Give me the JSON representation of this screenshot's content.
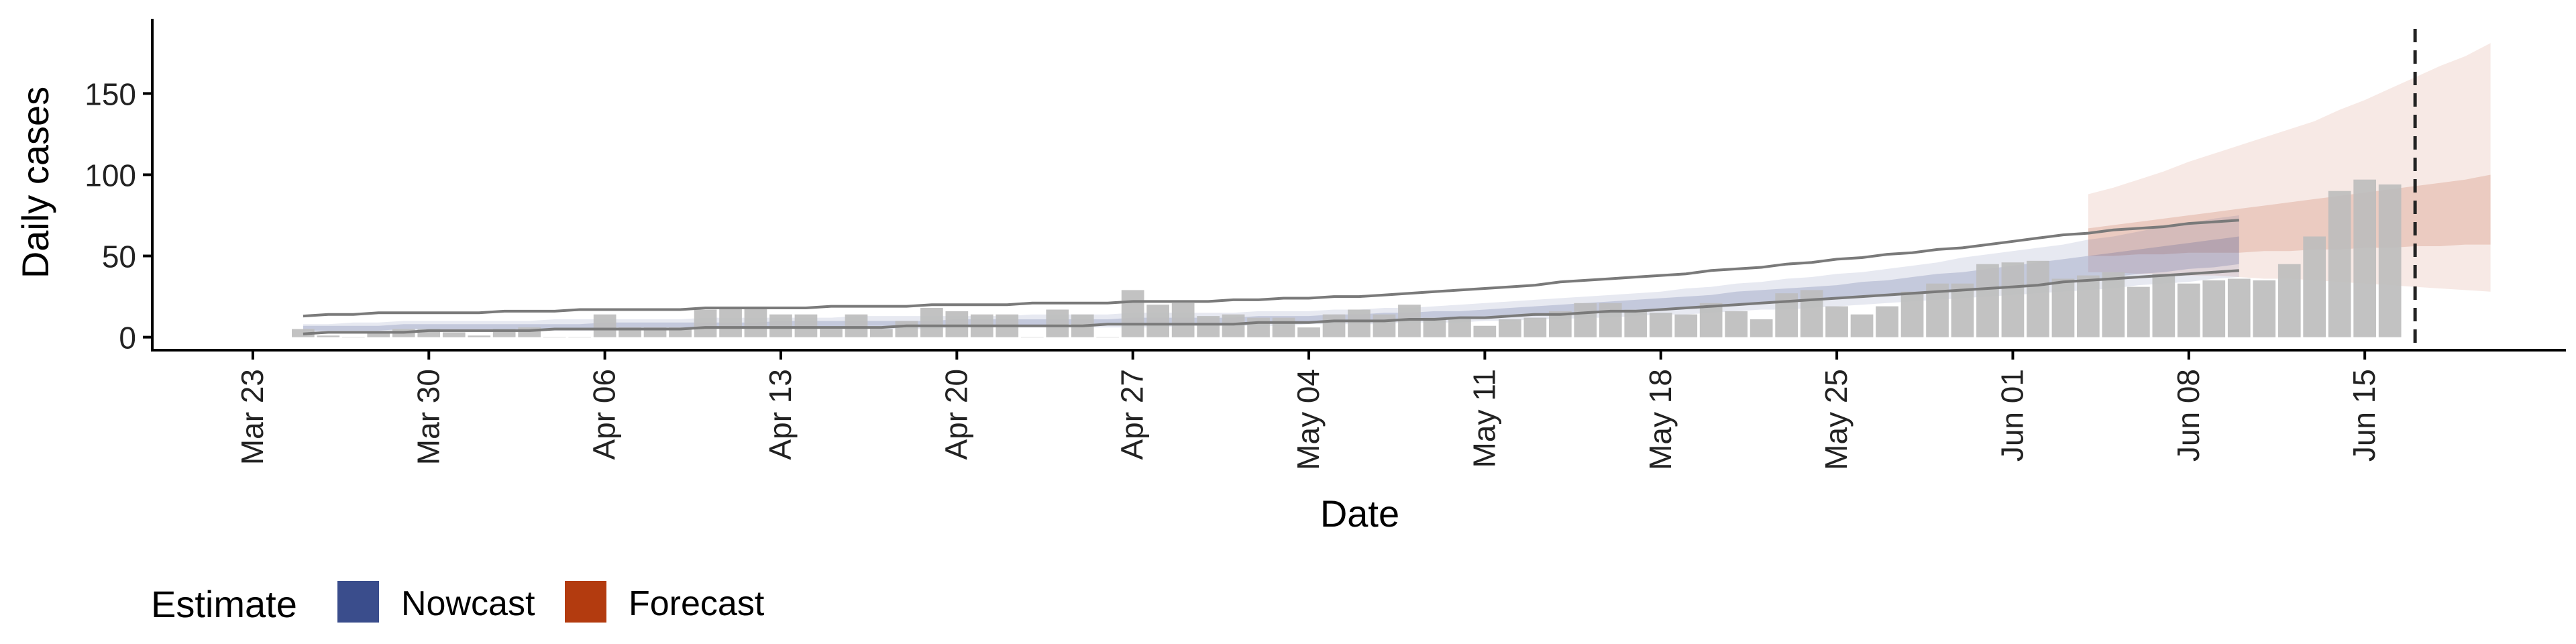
{
  "chart_data": {
    "type": "bar",
    "x_type": "date",
    "ylabel": "Daily cases",
    "xlabel": "Date",
    "ylim": [
      -8,
      196
    ],
    "xlim": [
      "2020-03-19",
      "2020-06-23"
    ],
    "y_ticks": [
      0,
      50,
      100,
      150
    ],
    "y_tick_labels": [
      "0",
      "50",
      "100",
      "150"
    ],
    "x_ticks": [
      "2020-03-23",
      "2020-03-30",
      "2020-04-06",
      "2020-04-13",
      "2020-04-20",
      "2020-04-27",
      "2020-05-04",
      "2020-05-11",
      "2020-05-18",
      "2020-05-25",
      "2020-06-01",
      "2020-06-08",
      "2020-06-15"
    ],
    "x_tick_labels": [
      "Mar 23",
      "Mar 30",
      "Apr 06",
      "Apr 13",
      "Apr 20",
      "Apr 27",
      "May 04",
      "May 11",
      "May 18",
      "May 25",
      "Jun 01",
      "Jun 08",
      "Jun 15"
    ],
    "grid": false,
    "cutoff_date": "2020-06-17",
    "legend": {
      "position": "bottom-left",
      "title": "Estimate",
      "items": [
        {
          "label": "Nowcast",
          "color": "#3a4d8c"
        },
        {
          "label": "Forecast",
          "color": "#b33b0f"
        }
      ]
    },
    "colors": {
      "bars": "#bdbdbd",
      "nowcast": "#3a4d8c",
      "forecast": "#b33b0f",
      "outer_lines": "#7a7a7a",
      "cutoff_line": "#222222"
    },
    "observed_cases": {
      "start_date": "2020-03-25",
      "values": [
        5,
        1,
        0,
        3,
        5,
        5,
        3,
        1,
        5,
        6,
        0,
        0,
        14,
        6,
        6,
        6,
        17,
        18,
        18,
        14,
        14,
        5,
        14,
        5,
        10,
        18,
        16,
        14,
        14,
        0,
        17,
        14,
        0,
        29,
        20,
        21,
        13,
        14,
        12,
        12,
        6,
        14,
        17,
        14,
        20,
        12,
        11,
        7,
        11,
        12,
        16,
        21,
        21,
        17,
        15,
        14,
        21,
        16,
        11,
        27,
        29,
        19,
        14,
        19,
        28,
        33,
        33,
        45,
        46,
        47,
        36,
        38,
        40,
        31,
        39,
        33,
        35,
        36,
        35,
        45,
        62,
        90,
        97,
        94
      ]
    },
    "nowcast_band": {
      "start_date": "2020-03-25",
      "outer_upper": [
        8,
        8,
        9,
        9,
        10,
        10,
        10,
        10,
        10,
        10,
        11,
        11,
        11,
        11,
        11,
        11,
        12,
        12,
        12,
        12,
        12,
        12,
        13,
        13,
        13,
        13,
        13,
        13,
        13,
        14,
        14,
        14,
        14,
        15,
        15,
        15,
        15,
        15,
        16,
        16,
        16,
        17,
        17,
        18,
        18,
        19,
        20,
        21,
        22,
        23,
        24,
        25,
        26,
        27,
        28,
        30,
        31,
        33,
        34,
        36,
        37,
        39,
        40,
        42,
        44,
        46,
        49,
        51,
        53,
        55,
        57,
        60,
        62,
        65,
        68,
        70,
        73,
        75
      ],
      "outer_lower": [
        3,
        3,
        3,
        3,
        3,
        4,
        4,
        4,
        4,
        4,
        4,
        4,
        4,
        4,
        5,
        5,
        5,
        5,
        5,
        5,
        5,
        5,
        5,
        5,
        5,
        5,
        6,
        6,
        6,
        6,
        6,
        6,
        6,
        6,
        6,
        7,
        7,
        7,
        7,
        7,
        8,
        8,
        8,
        8,
        9,
        9,
        9,
        10,
        10,
        11,
        11,
        12,
        12,
        13,
        14,
        14,
        15,
        16,
        17,
        17,
        18,
        19,
        20,
        21,
        22,
        23,
        24,
        25,
        26,
        27,
        28,
        29,
        30,
        32,
        33,
        34,
        36,
        37
      ],
      "inner_upper": [
        7,
        7,
        7,
        7,
        8,
        8,
        8,
        8,
        8,
        8,
        8,
        8,
        9,
        9,
        9,
        9,
        9,
        9,
        9,
        10,
        10,
        10,
        10,
        10,
        10,
        10,
        11,
        11,
        11,
        11,
        11,
        11,
        11,
        12,
        12,
        12,
        12,
        12,
        13,
        13,
        13,
        14,
        14,
        15,
        15,
        16,
        16,
        17,
        18,
        19,
        20,
        21,
        22,
        23,
        24,
        25,
        26,
        28,
        29,
        30,
        31,
        32,
        34,
        35,
        37,
        39,
        40,
        42,
        44,
        46,
        48,
        50,
        52,
        54,
        56,
        58,
        60,
        62
      ],
      "inner_lower": [
        4,
        4,
        4,
        4,
        5,
        5,
        5,
        5,
        5,
        5,
        5,
        5,
        6,
        6,
        6,
        6,
        6,
        6,
        6,
        6,
        6,
        6,
        7,
        7,
        7,
        7,
        7,
        7,
        7,
        7,
        8,
        8,
        8,
        8,
        8,
        8,
        8,
        9,
        9,
        9,
        9,
        10,
        10,
        10,
        11,
        11,
        12,
        12,
        13,
        13,
        14,
        15,
        15,
        16,
        17,
        18,
        19,
        20,
        21,
        22,
        23,
        24,
        25,
        26,
        27,
        28,
        29,
        31,
        32,
        33,
        35,
        36,
        37,
        39,
        40,
        42,
        43,
        45
      ],
      "line_upper": [
        13,
        14,
        14,
        15,
        15,
        15,
        15,
        15,
        16,
        16,
        16,
        17,
        17,
        17,
        17,
        17,
        18,
        18,
        18,
        18,
        18,
        19,
        19,
        19,
        19,
        20,
        20,
        20,
        20,
        21,
        21,
        21,
        21,
        22,
        22,
        22,
        22,
        23,
        23,
        24,
        24,
        25,
        25,
        26,
        27,
        28,
        29,
        30,
        31,
        32,
        34,
        35,
        36,
        37,
        38,
        39,
        41,
        42,
        43,
        45,
        46,
        48,
        49,
        51,
        52,
        54,
        55,
        57,
        59,
        61,
        63,
        64,
        66,
        67,
        68,
        70,
        71,
        72
      ],
      "line_lower": [
        2,
        3,
        3,
        3,
        3,
        4,
        4,
        4,
        4,
        4,
        5,
        5,
        5,
        5,
        5,
        5,
        6,
        6,
        6,
        6,
        6,
        6,
        6,
        6,
        7,
        7,
        7,
        7,
        7,
        7,
        7,
        7,
        8,
        8,
        8,
        8,
        8,
        8,
        9,
        9,
        9,
        10,
        10,
        10,
        11,
        11,
        12,
        12,
        13,
        14,
        14,
        15,
        16,
        16,
        17,
        18,
        19,
        20,
        21,
        22,
        23,
        24,
        25,
        26,
        27,
        28,
        29,
        30,
        31,
        32,
        34,
        35,
        36,
        37,
        38,
        39,
        40,
        41
      ]
    },
    "forecast_band": {
      "start_date": "2020-06-04",
      "outer_upper": [
        88,
        92,
        97,
        102,
        108,
        113,
        118,
        123,
        128,
        133,
        140,
        146,
        153,
        160,
        167,
        173,
        181
      ],
      "outer_lower": [
        40,
        40,
        39,
        39,
        38,
        38,
        37,
        36,
        36,
        35,
        34,
        33,
        32,
        31,
        30,
        29,
        28
      ],
      "inner_upper": [
        67,
        69,
        71,
        73,
        75,
        77,
        79,
        81,
        83,
        85,
        87,
        89,
        91,
        93,
        95,
        97,
        100
      ],
      "inner_lower": [
        50,
        50,
        51,
        51,
        52,
        52,
        52,
        53,
        53,
        54,
        54,
        55,
        55,
        56,
        56,
        57,
        57
      ]
    }
  }
}
